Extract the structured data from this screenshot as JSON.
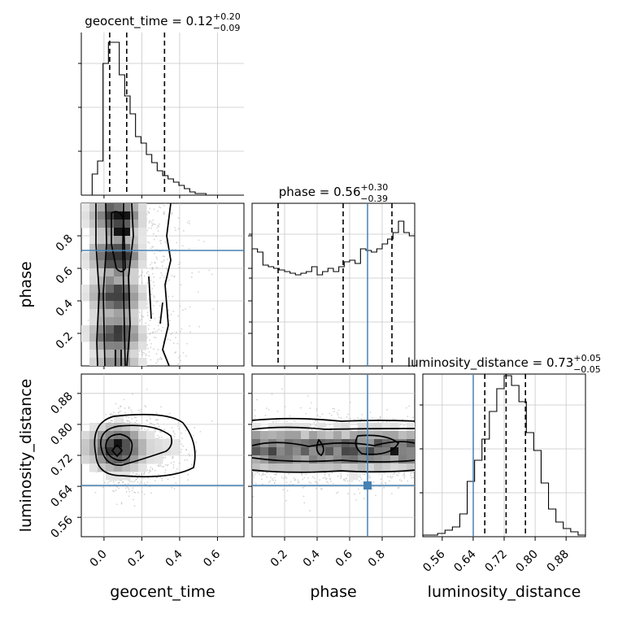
{
  "figure": {
    "type": "corner-plot",
    "truth_color": "#4682b4"
  },
  "parameters": [
    {
      "name": "geocent_time",
      "axis_label": "geocent_time",
      "range": [
        -0.12,
        0.74
      ],
      "ticks": [
        0.0,
        0.2,
        0.4,
        0.6
      ],
      "tick_labels": [
        "0.0",
        "0.2",
        "0.4",
        "0.6"
      ],
      "title_prefix": "geocent_time = 0.12",
      "title_sup": "+0.20",
      "title_sub": "−0.09",
      "quantiles": [
        0.03,
        0.12,
        0.32
      ],
      "hist": [
        0,
        0,
        0.13,
        0.21,
        0.81,
        0.94,
        0.94,
        0.74,
        0.61,
        0.5,
        0.36,
        0.32,
        0.25,
        0.2,
        0.15,
        0.12,
        0.1,
        0.08,
        0.06,
        0.04,
        0.02,
        0.01,
        0.01,
        0,
        0,
        0,
        0,
        0,
        0,
        0
      ],
      "truth": null
    },
    {
      "name": "phase",
      "axis_label": "phase",
      "range": [
        0.0,
        1.0
      ],
      "ticks": [
        0.2,
        0.4,
        0.6,
        0.8
      ],
      "tick_labels": [
        "0.2",
        "0.4",
        "0.6",
        "0.8"
      ],
      "title_prefix": "phase = 0.56",
      "title_sup": "+0.30",
      "title_sub": "−0.39",
      "quantiles": [
        0.16,
        0.56,
        0.86
      ],
      "hist": [
        0.72,
        0.7,
        0.62,
        0.61,
        0.6,
        0.59,
        0.58,
        0.57,
        0.56,
        0.57,
        0.58,
        0.61,
        0.56,
        0.58,
        0.6,
        0.58,
        0.61,
        0.64,
        0.65,
        0.63,
        0.72,
        0.71,
        0.7,
        0.72,
        0.75,
        0.78,
        0.82,
        0.89,
        0.82,
        0.8
      ],
      "truth": 0.71
    },
    {
      "name": "luminosity_distance",
      "axis_label": "luminosity_distance",
      "range": [
        0.51,
        0.93
      ],
      "ticks": [
        0.56,
        0.64,
        0.72,
        0.8,
        0.88
      ],
      "tick_labels": [
        "0.56",
        "0.64",
        "0.72",
        "0.80",
        "0.88"
      ],
      "title_prefix": "luminosity_distance = 0.73",
      "title_sup": "+0.05",
      "title_sub": "−0.05",
      "quantiles": [
        0.67,
        0.725,
        0.775
      ],
      "hist": [
        0.01,
        0.01,
        0.02,
        0.04,
        0.06,
        0.14,
        0.34,
        0.47,
        0.6,
        0.77,
        0.91,
        0.99,
        0.93,
        0.83,
        0.64,
        0.53,
        0.33,
        0.17,
        0.09,
        0.05,
        0.03,
        0.01
      ],
      "truth": 0.645
    }
  ],
  "panel_ticks": {
    "geocent_time_vs_phase_y": [
      "0.2",
      "0.4",
      "0.6",
      "0.8"
    ],
    "luminosity_distance_y": [
      "0.56",
      "0.64",
      "0.72",
      "0.80",
      "0.88"
    ]
  }
}
